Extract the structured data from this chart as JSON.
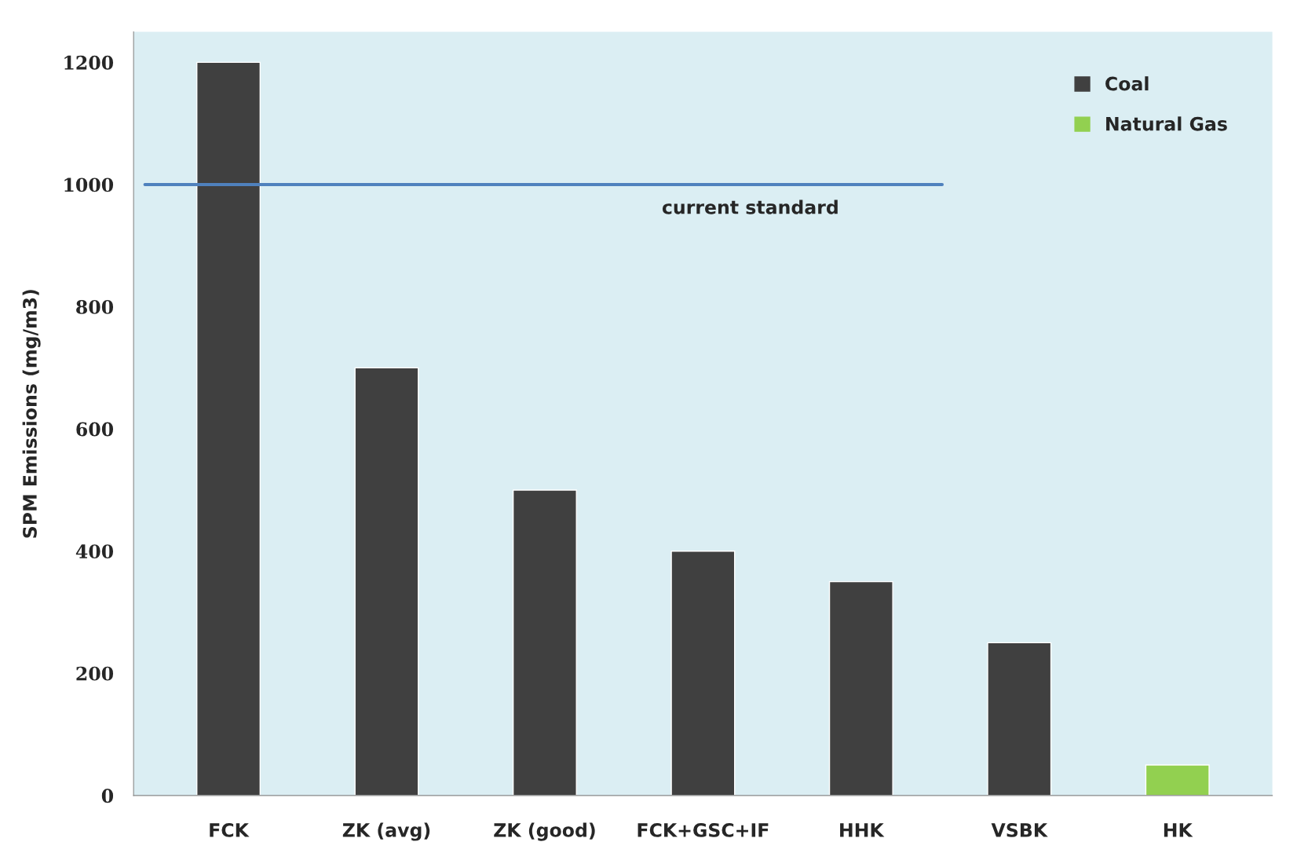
{
  "chart_data": {
    "type": "bar",
    "ylabel": "SPM Emissions (mg/m3)",
    "categories": [
      "FCK",
      "ZK (avg)",
      "ZK (good)",
      "FCK+GSC+IF",
      "HHK",
      "VSBK",
      "HK"
    ],
    "series": [
      {
        "name": "Coal",
        "color": "#404040",
        "values": [
          1200,
          700,
          500,
          400,
          350,
          250,
          null
        ]
      },
      {
        "name": "Natural Gas",
        "color": "#92d050",
        "values": [
          null,
          null,
          null,
          null,
          null,
          null,
          50
        ]
      }
    ],
    "ylim": [
      0,
      1250
    ],
    "yticks": [
      0,
      200,
      400,
      600,
      800,
      1000,
      1200
    ],
    "ref_lines": [
      {
        "axis": "y",
        "value": 1000,
        "label": "current standard",
        "color": "#4f81bd",
        "line_style": "solid"
      }
    ],
    "grid": false,
    "legend": "top right"
  }
}
